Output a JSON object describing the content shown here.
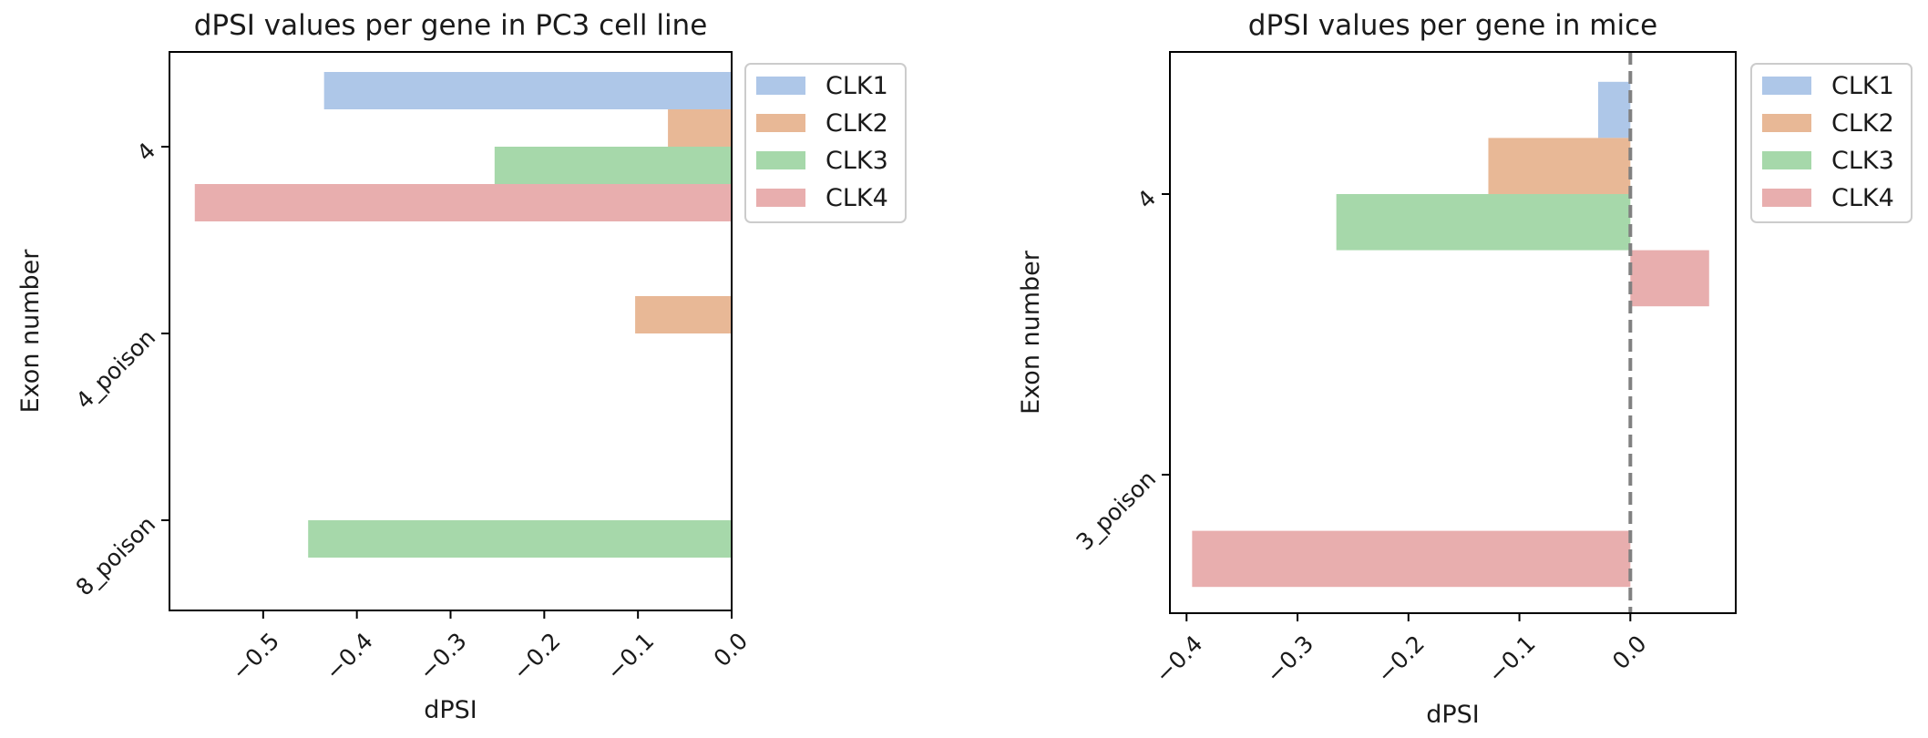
{
  "chart_data": [
    {
      "type": "bar",
      "orientation": "horizontal",
      "title": "dPSI values per gene in PC3 cell line",
      "xlabel": "dPSI",
      "ylabel": "Exon number",
      "categories": [
        "4",
        "4_poison",
        "8_poison"
      ],
      "xlim": [
        -0.6,
        0.0
      ],
      "xticks": [
        -0.5,
        -0.4,
        -0.3,
        -0.2,
        -0.1,
        0.0
      ],
      "xtick_labels": [
        "−0.5",
        "−0.4",
        "−0.3",
        "−0.2",
        "−0.1",
        "0.0"
      ],
      "grid": false,
      "legend": "upper right, outside",
      "reference_line": null,
      "series": [
        {
          "name": "CLK1",
          "color": "#aec7e8",
          "values": [
            -0.435,
            null,
            null
          ]
        },
        {
          "name": "CLK2",
          "color": "#e8b896",
          "values": [
            -0.068,
            -0.103,
            null
          ]
        },
        {
          "name": "CLK3",
          "color": "#a6d8aa",
          "values": [
            -0.253,
            null,
            -0.452
          ]
        },
        {
          "name": "CLK4",
          "color": "#e8aeae",
          "values": [
            -0.573,
            null,
            null
          ]
        }
      ]
    },
    {
      "type": "bar",
      "orientation": "horizontal",
      "title": "dPSI values per gene in mice",
      "xlabel": "dPSI",
      "ylabel": "Exon number",
      "categories": [
        "4",
        "3_poison"
      ],
      "xlim": [
        -0.415,
        0.095
      ],
      "xticks": [
        -0.4,
        -0.3,
        -0.2,
        -0.1,
        0.0
      ],
      "xtick_labels": [
        "−0.4",
        "−0.3",
        "−0.2",
        "−0.1",
        "0.0"
      ],
      "grid": false,
      "legend": "upper right, outside",
      "reference_line": {
        "x": 0.0,
        "style": "dashed",
        "color": "#808080"
      },
      "series": [
        {
          "name": "CLK1",
          "color": "#aec7e8",
          "values": [
            -0.029,
            null
          ]
        },
        {
          "name": "CLK2",
          "color": "#e8b896",
          "values": [
            -0.128,
            null
          ]
        },
        {
          "name": "CLK3",
          "color": "#a6d8aa",
          "values": [
            -0.265,
            null
          ]
        },
        {
          "name": "CLK4",
          "color": "#e8aeae",
          "values": [
            0.071,
            -0.395
          ]
        }
      ]
    }
  ]
}
